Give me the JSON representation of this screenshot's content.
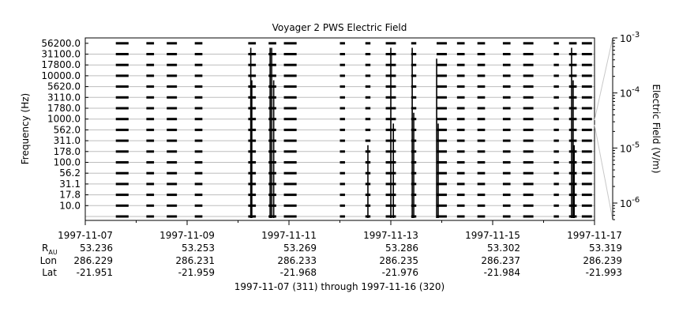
{
  "chart_data": {
    "type": "line",
    "title": "Voyager 2 PWS Electric Field",
    "ylabel": "Frequency (Hz)",
    "right_axis_label": "Electric Field (V/m)",
    "channels_hz": [
      "10.0",
      "17.8",
      "31.1",
      "56.2",
      "100.0",
      "178.0",
      "311.0",
      "562.0",
      "1000.0",
      "1780.0",
      "3110.0",
      "5620.0",
      "10000.0",
      "17800.0",
      "31100.0",
      "56200.0"
    ],
    "x_ticks": [
      "1997-11-07",
      "1997-11-09",
      "1997-11-11",
      "1997-11-13",
      "1997-11-15",
      "1997-11-17"
    ],
    "xlim": [
      "1997-11-07",
      "1997-11-17"
    ],
    "right_axis": {
      "scale": "log",
      "ylim": [
        5e-07,
        0.001
      ],
      "ticks": [
        {
          "mantissa": "10",
          "exponent": "-3"
        },
        {
          "mantissa": "10",
          "exponent": "-4"
        },
        {
          "mantissa": "10",
          "exponent": "-5"
        },
        {
          "mantissa": "10",
          "exponent": "-6"
        }
      ]
    },
    "grid": true,
    "ephemeris": {
      "rows": [
        {
          "label": "R",
          "label_sub": "AU",
          "values": [
            "53.236",
            "53.253",
            "53.269",
            "53.286",
            "53.302",
            "53.319"
          ]
        },
        {
          "label": "Lon",
          "label_sub": "",
          "values": [
            "286.229",
            "286.231",
            "286.233",
            "286.235",
            "286.237",
            "286.239"
          ]
        },
        {
          "label": "Lat",
          "label_sub": "",
          "values": [
            "-21.951",
            "-21.959",
            "-21.968",
            "-21.976",
            "-21.984",
            "-21.993"
          ]
        }
      ]
    },
    "data_blocks_days": [
      [
        0.6,
        0.85
      ],
      [
        1.2,
        1.35
      ],
      [
        1.6,
        1.8
      ],
      [
        2.15,
        2.3
      ],
      [
        3.2,
        3.35
      ],
      [
        3.6,
        3.75
      ],
      [
        3.9,
        4.15
      ],
      [
        5.0,
        5.1
      ],
      [
        5.5,
        5.6
      ],
      [
        5.9,
        6.1
      ],
      [
        6.4,
        6.5
      ],
      [
        6.9,
        7.1
      ],
      [
        7.3,
        7.45
      ],
      [
        7.7,
        7.85
      ],
      [
        8.2,
        8.35
      ],
      [
        8.6,
        8.8
      ],
      [
        9.2,
        9.3
      ],
      [
        9.5,
        9.65
      ],
      [
        9.75,
        9.95
      ]
    ],
    "spikes": [
      {
        "day": 3.25,
        "top_channel": 15
      },
      {
        "day": 3.27,
        "top_channel": 12
      },
      {
        "day": 3.63,
        "top_channel": 15
      },
      {
        "day": 3.66,
        "top_channel": 15
      },
      {
        "day": 3.7,
        "top_channel": 12
      },
      {
        "day": 5.55,
        "top_channel": 6
      },
      {
        "day": 6.0,
        "top_channel": 15
      },
      {
        "day": 6.05,
        "top_channel": 8
      },
      {
        "day": 6.42,
        "top_channel": 15
      },
      {
        "day": 6.45,
        "top_channel": 9
      },
      {
        "day": 6.9,
        "top_channel": 14
      },
      {
        "day": 6.93,
        "top_channel": 8
      },
      {
        "day": 9.55,
        "top_channel": 15
      },
      {
        "day": 9.58,
        "top_channel": 12
      },
      {
        "day": 9.6,
        "top_channel": 6
      }
    ]
  },
  "footer": {
    "range_text": "1997-11-07 (311) through 1997-11-16 (320)"
  }
}
